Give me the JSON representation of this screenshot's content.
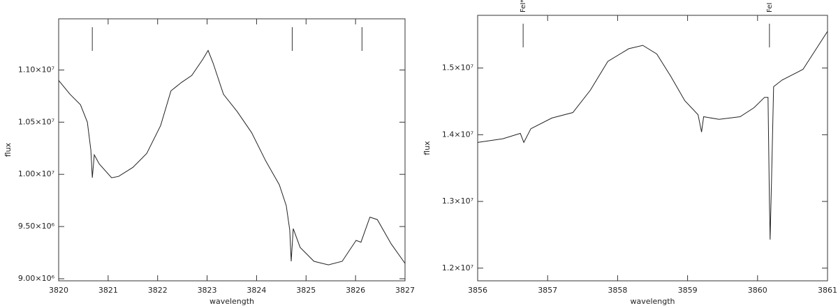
{
  "chart_data": [
    {
      "type": "line",
      "x_label": "wavelength",
      "y_label": "flux",
      "color": "#222222",
      "xlim": [
        3820,
        3827
      ],
      "xticks": [
        3820,
        3821,
        3822,
        3823,
        3824,
        3825,
        3826,
        3827
      ],
      "ylim": [
        8980000,
        11490000
      ],
      "yticks": [
        {
          "value": 9000000,
          "label": "9.00×10⁶"
        },
        {
          "value": 9500000,
          "label": "9.50×10⁶"
        },
        {
          "value": 10000000,
          "label": "1.00×10⁷"
        },
        {
          "value": 10500000,
          "label": "1.05×10⁷"
        },
        {
          "value": 11000000,
          "label": "1.10×10⁷"
        }
      ],
      "x": [
        3820.0,
        3820.23,
        3820.44,
        3820.58,
        3820.65,
        3820.68,
        3820.72,
        3820.82,
        3821.07,
        3821.21,
        3821.5,
        3821.78,
        3822.06,
        3822.27,
        3822.48,
        3822.69,
        3822.91,
        3823.02,
        3823.12,
        3823.33,
        3823.61,
        3823.9,
        3824.18,
        3824.46,
        3824.6,
        3824.67,
        3824.7,
        3824.74,
        3824.88,
        3825.16,
        3825.45,
        3825.73,
        3826.01,
        3826.11,
        3826.29,
        3826.44,
        3826.72,
        3827.0
      ],
      "values": [
        10900000,
        10767000,
        10667000,
        10500000,
        10233000,
        9967000,
        10187000,
        10100000,
        9967000,
        9980000,
        10067000,
        10200000,
        10467000,
        10800000,
        10880000,
        10947000,
        11100000,
        11187000,
        11067000,
        10767000,
        10600000,
        10400000,
        10133000,
        9900000,
        9700000,
        9467000,
        9167000,
        9480000,
        9300000,
        9167000,
        9133000,
        9167000,
        9367000,
        9350000,
        9590000,
        9567000,
        9333000,
        9147000
      ],
      "markers": [
        {
          "x": 3820.68
        },
        {
          "x": 3824.72
        },
        {
          "x": 3826.13
        }
      ]
    },
    {
      "type": "line",
      "x_label": "wavelength",
      "y_label": "flux",
      "color": "#222222",
      "xlim": [
        3856,
        3861
      ],
      "xticks": [
        3856,
        3857,
        3858,
        3859,
        3860,
        3861
      ],
      "ylim": [
        11810000,
        15790000
      ],
      "yticks": [
        {
          "value": 12000000,
          "label": "1.2×10⁷"
        },
        {
          "value": 13000000,
          "label": "1.3×10⁷"
        },
        {
          "value": 14000000,
          "label": "1.4×10⁷"
        },
        {
          "value": 15000000,
          "label": "1.5×10⁷"
        }
      ],
      "x": [
        3856.0,
        3856.36,
        3856.61,
        3856.66,
        3856.76,
        3857.06,
        3857.36,
        3857.61,
        3857.86,
        3858.16,
        3858.36,
        3858.56,
        3858.76,
        3858.96,
        3859.15,
        3859.2,
        3859.23,
        3859.45,
        3859.75,
        3859.95,
        3860.1,
        3860.15,
        3860.17,
        3860.18,
        3860.2,
        3860.23,
        3860.35,
        3860.65,
        3861.0
      ],
      "values": [
        13885000,
        13940000,
        14020000,
        13885000,
        14090000,
        14250000,
        14333000,
        14667000,
        15100000,
        15290000,
        15340000,
        15210000,
        14875000,
        14510000,
        14300000,
        14040000,
        14270000,
        14230000,
        14270000,
        14406000,
        14560000,
        14560000,
        13000000,
        12427000,
        13310000,
        14720000,
        14820000,
        14980000,
        15550000
      ],
      "markers": [
        {
          "x": 3856.65,
          "label": "FeI*"
        },
        {
          "x": 3860.17,
          "label": "FeI"
        }
      ]
    }
  ]
}
